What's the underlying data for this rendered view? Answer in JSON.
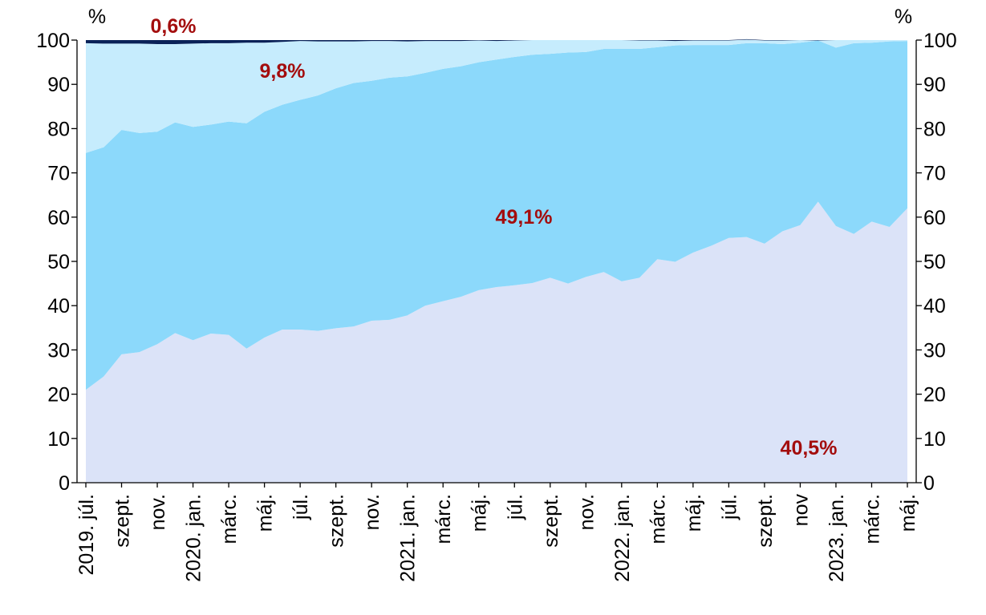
{
  "chart_data": {
    "type": "area",
    "stacked": true,
    "y_unit_left": "%",
    "y_unit_right": "%",
    "ylim": [
      0,
      100
    ],
    "yticks": [
      0,
      10,
      20,
      30,
      40,
      50,
      60,
      70,
      80,
      90,
      100
    ],
    "x_tick_labels": [
      "2019. júl.",
      "szept.",
      "nov.",
      "2020. jan.",
      "márc.",
      "máj.",
      "júl.",
      "szept.",
      "nov.",
      "2021. jan.",
      "márc.",
      "máj.",
      "júl.",
      "szept.",
      "nov.",
      "2022. jan.",
      "márc.",
      "máj.",
      "júl.",
      "szept.",
      "nov",
      "2023. jan.",
      "márc.",
      "máj."
    ],
    "x": [
      "2019-07",
      "2019-08",
      "2019-09",
      "2019-10",
      "2019-11",
      "2019-12",
      "2020-01",
      "2020-02",
      "2020-03",
      "2020-04",
      "2020-05",
      "2020-06",
      "2020-07",
      "2020-08",
      "2020-09",
      "2020-10",
      "2020-11",
      "2020-12",
      "2021-01",
      "2021-02",
      "2021-03",
      "2021-04",
      "2021-05",
      "2021-06",
      "2021-07",
      "2021-08",
      "2021-09",
      "2021-10",
      "2021-11",
      "2021-12",
      "2022-01",
      "2022-02",
      "2022-03",
      "2022-04",
      "2022-05",
      "2022-06",
      "2022-07",
      "2022-08",
      "2022-09",
      "2022-10",
      "2022-11",
      "2022-12",
      "2023-01",
      "2023-02",
      "2023-03",
      "2023-04",
      "2023-05"
    ],
    "series": [
      {
        "color": "#dbe3f8",
        "values": [
          21.0,
          24.0,
          29.0,
          29.5,
          31.3,
          33.8,
          32.2,
          33.7,
          33.4,
          30.3,
          32.8,
          34.6,
          34.6,
          34.3,
          34.9,
          35.3,
          36.6,
          36.8,
          37.8,
          40.0,
          41.0,
          42.0,
          43.5,
          44.2,
          44.6,
          45.1,
          46.3,
          45.0,
          46.5,
          47.6,
          45.5,
          46.3,
          50.5,
          49.9,
          52.0,
          53.5,
          55.3,
          55.5,
          54.0,
          56.8,
          58.2,
          63.5,
          58.0,
          56.2,
          59.0,
          57.8,
          62.0
        ]
      },
      {
        "color": "#8cd9fb",
        "values": [
          53.5,
          51.8,
          50.7,
          49.5,
          48.0,
          47.6,
          48.2,
          47.2,
          48.2,
          50.9,
          51.0,
          50.8,
          51.9,
          53.2,
          54.2,
          55.0,
          54.2,
          54.7,
          54.0,
          52.6,
          52.5,
          52.1,
          51.5,
          51.4,
          51.6,
          51.6,
          50.6,
          52.2,
          50.8,
          50.4,
          52.5,
          51.7,
          47.9,
          48.9,
          46.9,
          45.4,
          43.6,
          43.8,
          45.3,
          42.3,
          41.2,
          36.4,
          40.3,
          43.1,
          40.4,
          41.9,
          37.8
        ]
      },
      {
        "color": "#c6ecfd",
        "values": [
          24.8,
          23.4,
          19.5,
          20.2,
          19.8,
          17.7,
          18.8,
          18.4,
          17.7,
          18.2,
          15.6,
          14.2,
          13.3,
          12.2,
          10.6,
          9.4,
          9.0,
          8.3,
          7.9,
          7.2,
          6.3,
          5.7,
          4.9,
          4.2,
          3.7,
          3.3,
          3.1,
          2.8,
          2.7,
          2.0,
          2.0,
          1.9,
          1.5,
          1.0,
          1.0,
          1.0,
          1.0,
          0.8,
          0.6,
          0.8,
          0.6,
          0.0,
          1.7,
          0.7,
          0.6,
          0.3,
          0.2
        ]
      },
      {
        "color": "#0a2258",
        "values": [
          0.7,
          0.8,
          0.8,
          0.8,
          0.9,
          0.9,
          0.8,
          0.7,
          0.7,
          0.6,
          0.6,
          0.4,
          0.2,
          0.3,
          0.3,
          0.3,
          0.2,
          0.2,
          0.3,
          0.2,
          0.2,
          0.2,
          0.1,
          0.2,
          0.1,
          0.0,
          0.0,
          0.0,
          0.0,
          0.0,
          0.0,
          0.1,
          0.1,
          0.2,
          0.1,
          0.1,
          0.1,
          0.1,
          0.1,
          0.1,
          0.0,
          0.1,
          0.0,
          0.0,
          0.0,
          0.0,
          0.0
        ]
      }
    ],
    "annotations": [
      {
        "text": "0,6%",
        "color": "#a30d0d"
      },
      {
        "text": "9,8%",
        "color": "#a30d0d"
      },
      {
        "text": "49,1%",
        "color": "#a30d0d"
      },
      {
        "text": "40,5%",
        "color": "#a30d0d"
      }
    ]
  }
}
